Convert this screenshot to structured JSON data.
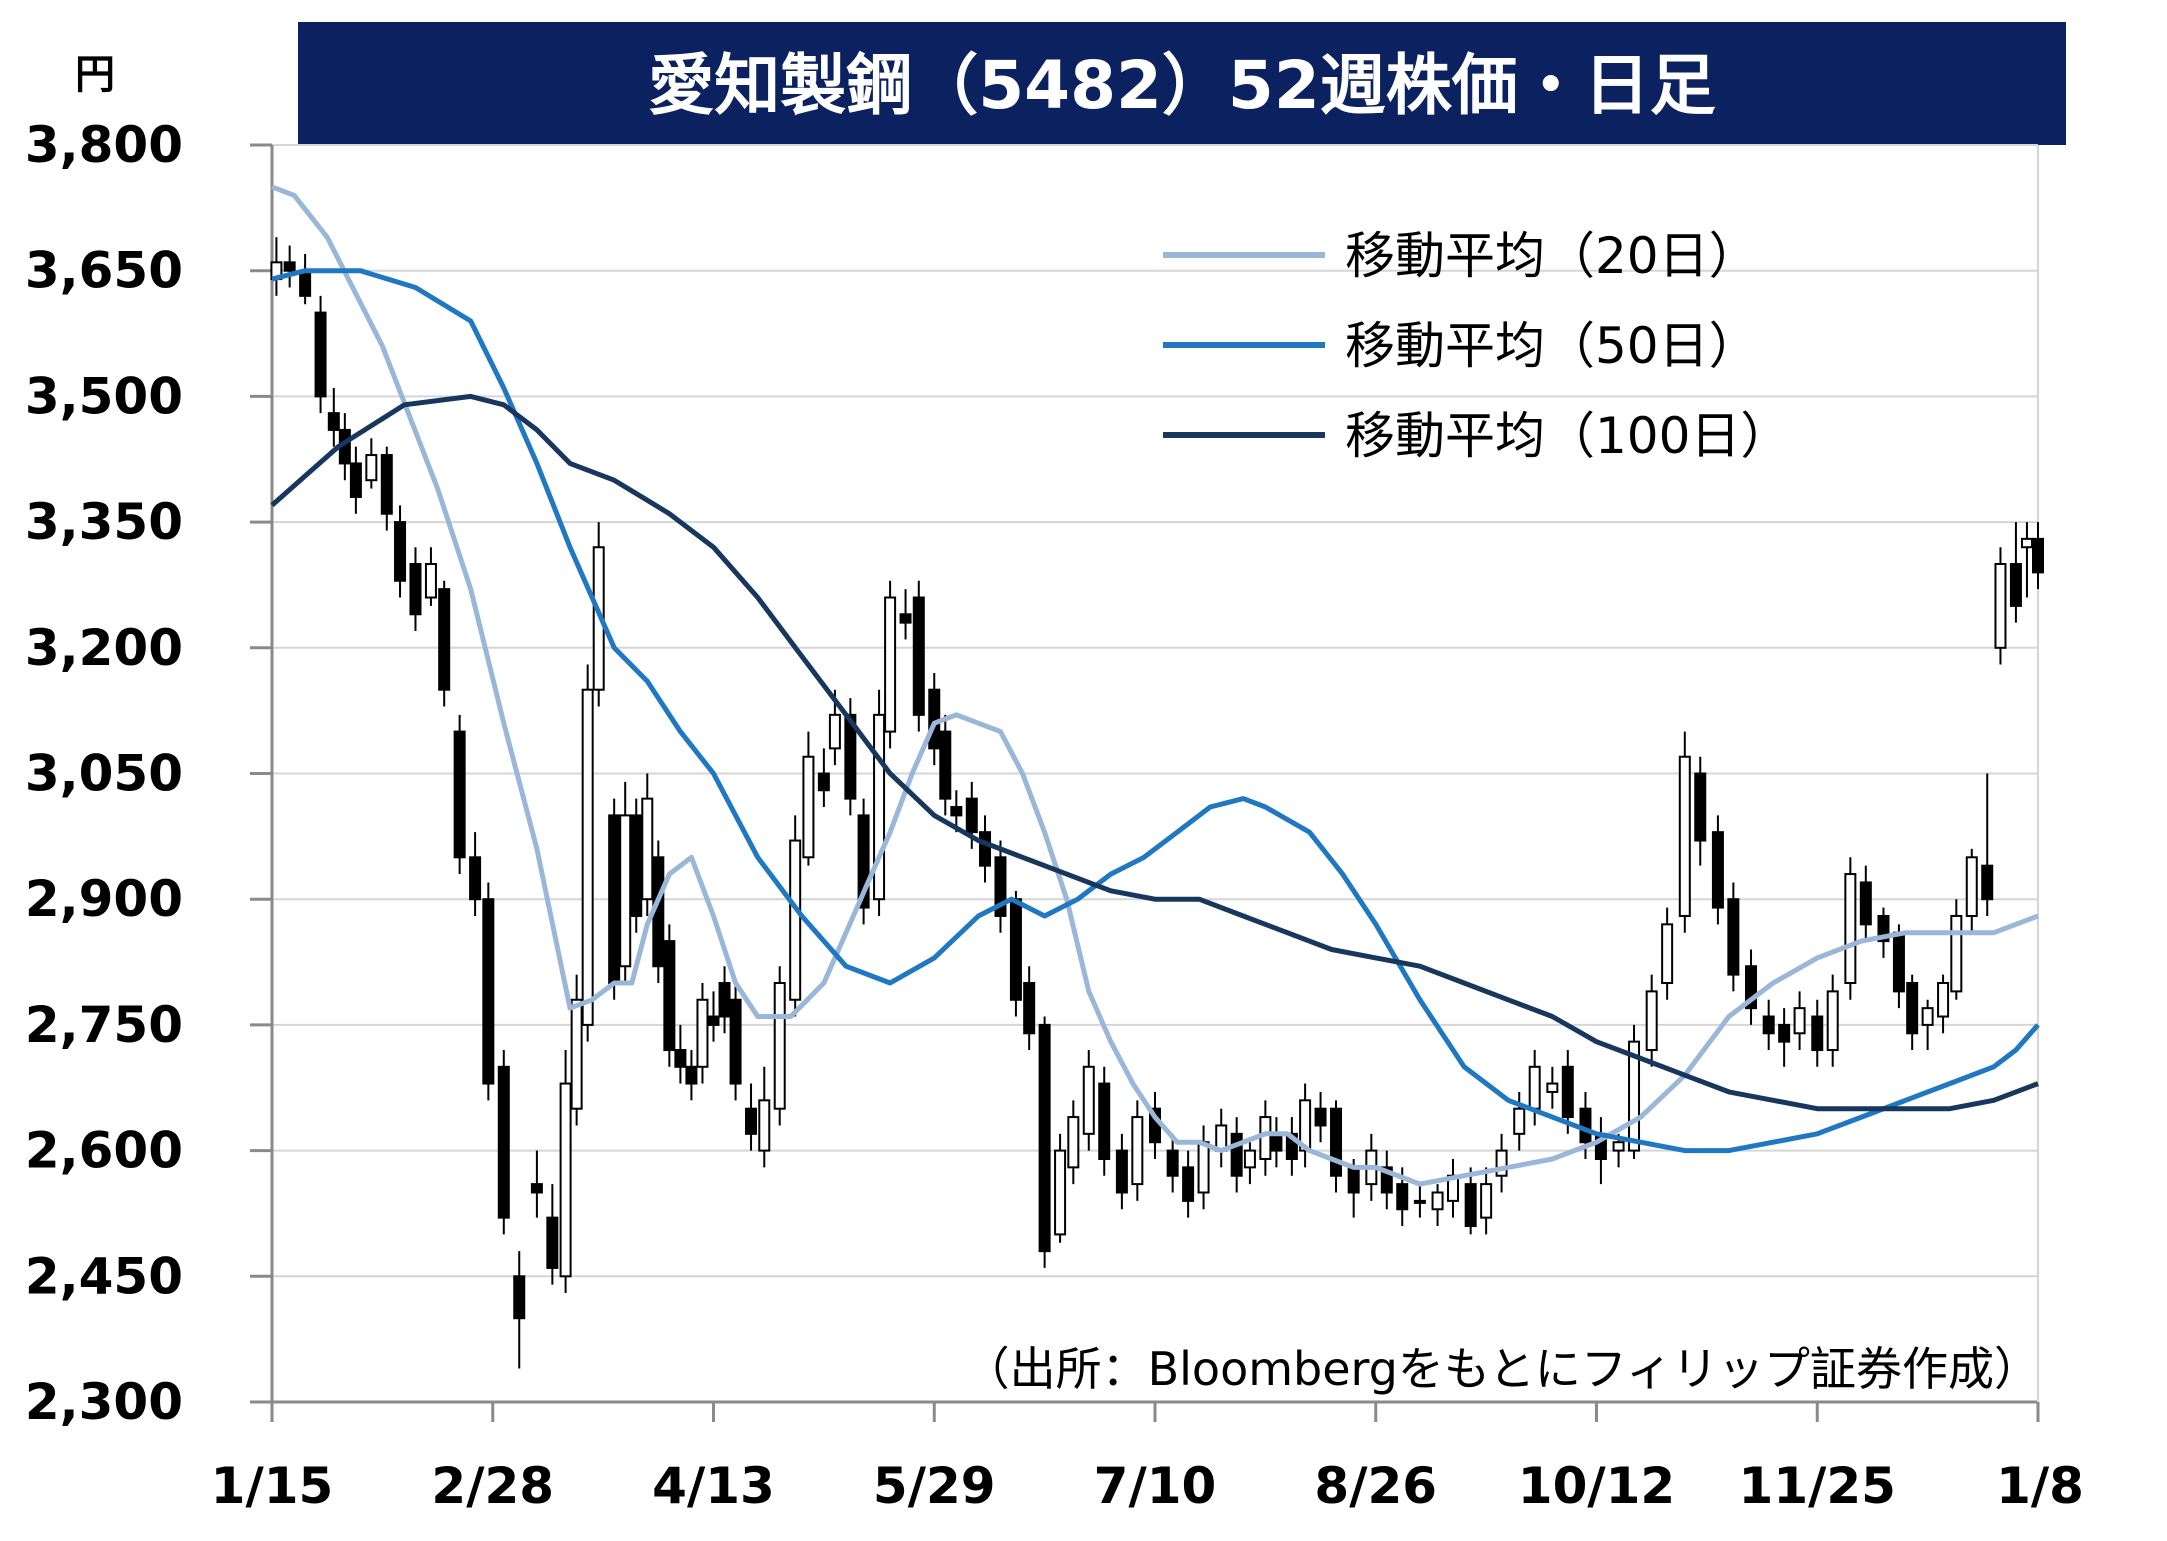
{
  "chart_data": {
    "type": "line",
    "title": "愛知製鋼（5482）52週株価・日足",
    "unit_label": "円",
    "source": "（出所：Bloombergをもとにフィリップ証券作成）",
    "ylim": [
      2300,
      3800
    ],
    "yticks": [
      "3,800",
      "3,650",
      "3,500",
      "3,350",
      "3,200",
      "3,050",
      "2,900",
      "2,750",
      "2,600",
      "2,450",
      "2,300"
    ],
    "ytick_values": [
      3800,
      3650,
      3500,
      3350,
      3200,
      3050,
      2900,
      2750,
      2600,
      2450,
      2300
    ],
    "xlim": [
      0,
      8
    ],
    "x_tick_labels": [
      "1/15",
      "2/28",
      "4/13",
      "5/29",
      "7/10",
      "8/26",
      "10/12",
      "11/25",
      "1/8"
    ],
    "grid": true,
    "legend_position": "top-right",
    "series": [
      {
        "name": "移動平均（20日）",
        "color": "#9ab6d8",
        "x": [
          0,
          0.1,
          0.25,
          0.5,
          0.75,
          0.9,
          1.05,
          1.2,
          1.35,
          1.45,
          1.55,
          1.63,
          1.7,
          1.8,
          1.9,
          2.0,
          2.1,
          2.2,
          2.35,
          2.5,
          2.6,
          2.7,
          2.8,
          2.9,
          3.0,
          3.1,
          3.2,
          3.3,
          3.4,
          3.5,
          3.6,
          3.7,
          3.8,
          3.9,
          4.0,
          4.1,
          4.2,
          4.3,
          4.4,
          4.5,
          4.6,
          4.7,
          4.8,
          4.9,
          5.0,
          5.2,
          5.4,
          5.6,
          5.8,
          6.0,
          6.2,
          6.4,
          6.6,
          6.8,
          7.0,
          7.2,
          7.4,
          7.6,
          7.8,
          8.0
        ],
        "values": [
          3750,
          3740,
          3690,
          3560,
          3390,
          3270,
          3110,
          2960,
          2770,
          2780,
          2800,
          2800,
          2870,
          2930,
          2950,
          2880,
          2800,
          2760,
          2760,
          2800,
          2860,
          2920,
          2980,
          3050,
          3110,
          3120,
          3110,
          3100,
          3050,
          2980,
          2900,
          2790,
          2730,
          2680,
          2640,
          2610,
          2610,
          2600,
          2610,
          2620,
          2620,
          2600,
          2590,
          2580,
          2580,
          2560,
          2570,
          2580,
          2590,
          2610,
          2640,
          2690,
          2760,
          2800,
          2830,
          2850,
          2860,
          2860,
          2860,
          2880
        ]
      },
      {
        "name": "移動平均（50日）",
        "color": "#1f78c1",
        "x": [
          0,
          0.15,
          0.4,
          0.65,
          0.9,
          1.05,
          1.2,
          1.35,
          1.55,
          1.7,
          1.85,
          2.0,
          2.2,
          2.4,
          2.6,
          2.8,
          3.0,
          3.2,
          3.35,
          3.5,
          3.65,
          3.8,
          3.95,
          4.1,
          4.25,
          4.4,
          4.5,
          4.7,
          4.85,
          5.0,
          5.2,
          5.4,
          5.6,
          5.8,
          6.0,
          6.2,
          6.4,
          6.6,
          6.8,
          7.0,
          7.2,
          7.4,
          7.6,
          7.8,
          7.9,
          8.0
        ],
        "values": [
          3640,
          3650,
          3650,
          3630,
          3590,
          3510,
          3420,
          3320,
          3200,
          3160,
          3100,
          3050,
          2950,
          2880,
          2820,
          2800,
          2830,
          2880,
          2900,
          2880,
          2900,
          2930,
          2950,
          2980,
          3010,
          3020,
          3010,
          2980,
          2930,
          2870,
          2780,
          2700,
          2660,
          2640,
          2620,
          2610,
          2600,
          2600,
          2610,
          2620,
          2640,
          2660,
          2680,
          2700,
          2720,
          2750
        ]
      },
      {
        "name": "移動平均（100日）",
        "color": "#17375e",
        "x": [
          0,
          0.3,
          0.6,
          0.9,
          1.05,
          1.2,
          1.35,
          1.55,
          1.8,
          2.0,
          2.2,
          2.4,
          2.6,
          2.8,
          3.0,
          3.2,
          3.4,
          3.6,
          3.8,
          4.0,
          4.2,
          4.4,
          4.6,
          4.8,
          5.0,
          5.2,
          5.4,
          5.6,
          5.8,
          6.0,
          6.2,
          6.4,
          6.6,
          6.8,
          7.0,
          7.2,
          7.4,
          7.6,
          7.8,
          8.0
        ],
        "values": [
          3370,
          3440,
          3490,
          3500,
          3490,
          3460,
          3420,
          3400,
          3360,
          3320,
          3260,
          3190,
          3120,
          3050,
          3000,
          2970,
          2950,
          2930,
          2910,
          2900,
          2900,
          2880,
          2860,
          2840,
          2830,
          2820,
          2800,
          2780,
          2760,
          2730,
          2710,
          2690,
          2670,
          2660,
          2650,
          2650,
          2650,
          2650,
          2660,
          2680
        ]
      }
    ],
    "candlesticks": {
      "color": "#000000",
      "x": [
        0.02,
        0.08,
        0.15,
        0.22,
        0.28,
        0.33,
        0.38,
        0.45,
        0.52,
        0.58,
        0.65,
        0.72,
        0.78,
        0.85,
        0.92,
        0.98,
        1.05,
        1.12,
        1.2,
        1.27,
        1.33,
        1.38,
        1.43,
        1.48,
        1.55,
        1.6,
        1.65,
        1.7,
        1.75,
        1.8,
        1.85,
        1.9,
        1.95,
        2.0,
        2.05,
        2.1,
        2.17,
        2.23,
        2.3,
        2.37,
        2.43,
        2.5,
        2.55,
        2.62,
        2.68,
        2.75,
        2.8,
        2.87,
        2.93,
        3.0,
        3.05,
        3.1,
        3.17,
        3.23,
        3.3,
        3.37,
        3.43,
        3.5,
        3.57,
        3.63,
        3.7,
        3.77,
        3.85,
        3.92,
        4.0,
        4.08,
        4.15,
        4.22,
        4.3,
        4.37,
        4.43,
        4.5,
        4.55,
        4.62,
        4.68,
        4.75,
        4.82,
        4.9,
        4.98,
        5.05,
        5.12,
        5.2,
        5.28,
        5.35,
        5.43,
        5.5,
        5.57,
        5.65,
        5.72,
        5.8,
        5.87,
        5.95,
        6.02,
        6.1,
        6.17,
        6.25,
        6.32,
        6.4,
        6.47,
        6.55,
        6.62,
        6.7,
        6.78,
        6.85,
        6.92,
        7.0,
        7.07,
        7.15,
        7.22,
        7.3,
        7.37,
        7.43,
        7.5,
        7.57,
        7.63,
        7.7,
        7.77,
        7.83,
        7.9,
        7.95,
        8.0
      ],
      "open": [
        3640,
        3660,
        3650,
        3600,
        3480,
        3460,
        3420,
        3400,
        3430,
        3350,
        3300,
        3260,
        3270,
        3100,
        2950,
        2900,
        2700,
        2450,
        2560,
        2520,
        2450,
        2650,
        2750,
        3150,
        3000,
        2820,
        3000,
        2900,
        2950,
        2850,
        2720,
        2700,
        2700,
        2760,
        2800,
        2780,
        2650,
        2600,
        2650,
        2780,
        2950,
        3050,
        3080,
        3120,
        3000,
        2900,
        3100,
        3240,
        3260,
        3150,
        3100,
        3010,
        3020,
        2980,
        2950,
        2900,
        2800,
        2750,
        2500,
        2580,
        2620,
        2680,
        2600,
        2560,
        2650,
        2600,
        2580,
        2550,
        2600,
        2620,
        2580,
        2590,
        2620,
        2620,
        2600,
        2650,
        2650,
        2580,
        2560,
        2580,
        2560,
        2540,
        2530,
        2540,
        2560,
        2520,
        2570,
        2620,
        2650,
        2670,
        2700,
        2650,
        2620,
        2600,
        2600,
        2720,
        2800,
        2880,
        3050,
        2980,
        2900,
        2820,
        2760,
        2750,
        2740,
        2760,
        2720,
        2800,
        2920,
        2880,
        2860,
        2800,
        2750,
        2760,
        2790,
        2880,
        2940,
        3200,
        3300,
        3320,
        3330
      ],
      "close": [
        3660,
        3650,
        3620,
        3500,
        3460,
        3420,
        3380,
        3430,
        3360,
        3280,
        3240,
        3300,
        3150,
        2950,
        2900,
        2680,
        2520,
        2400,
        2550,
        2460,
        2680,
        2780,
        3150,
        3320,
        2800,
        3000,
        2880,
        3020,
        2820,
        2720,
        2700,
        2680,
        2780,
        2750,
        2760,
        2680,
        2620,
        2660,
        2800,
        2970,
        3070,
        3030,
        3120,
        3020,
        2890,
        3120,
        3260,
        3230,
        3120,
        3080,
        3020,
        3000,
        2980,
        2940,
        2880,
        2780,
        2740,
        2480,
        2600,
        2640,
        2700,
        2590,
        2550,
        2640,
        2610,
        2570,
        2540,
        2610,
        2630,
        2570,
        2600,
        2640,
        2600,
        2590,
        2660,
        2630,
        2570,
        2550,
        2600,
        2550,
        2530,
        2540,
        2550,
        2570,
        2510,
        2560,
        2600,
        2650,
        2700,
        2680,
        2640,
        2610,
        2590,
        2610,
        2730,
        2790,
        2870,
        3070,
        2970,
        2890,
        2810,
        2770,
        2740,
        2730,
        2770,
        2720,
        2790,
        2930,
        2870,
        2850,
        2790,
        2740,
        2770,
        2800,
        2880,
        2950,
        2900,
        3300,
        3250,
        3330,
        3290
      ],
      "high": [
        3690,
        3680,
        3670,
        3620,
        3510,
        3480,
        3440,
        3450,
        3440,
        3370,
        3320,
        3320,
        3280,
        3120,
        2980,
        2920,
        2720,
        2480,
        2600,
        2560,
        2720,
        2810,
        3180,
        3350,
        3020,
        3040,
        3020,
        3050,
        2970,
        2870,
        2750,
        2720,
        2800,
        2790,
        2820,
        2800,
        2680,
        2700,
        2820,
        3000,
        3100,
        3080,
        3150,
        3140,
        3020,
        3150,
        3280,
        3270,
        3280,
        3170,
        3120,
        3030,
        3040,
        3000,
        2970,
        2910,
        2820,
        2760,
        2620,
        2660,
        2720,
        2700,
        2620,
        2660,
        2670,
        2620,
        2600,
        2630,
        2650,
        2640,
        2610,
        2660,
        2640,
        2640,
        2680,
        2670,
        2660,
        2590,
        2620,
        2600,
        2580,
        2560,
        2560,
        2590,
        2580,
        2580,
        2620,
        2670,
        2720,
        2700,
        2720,
        2670,
        2640,
        2620,
        2750,
        2810,
        2890,
        3100,
        3070,
        3000,
        2920,
        2840,
        2780,
        2770,
        2790,
        2780,
        2810,
        2950,
        2940,
        2890,
        2870,
        2810,
        2780,
        2810,
        2900,
        2960,
        3050,
        3320,
        3350,
        3350,
        3350
      ],
      "low": [
        3620,
        3630,
        3610,
        3480,
        3440,
        3400,
        3360,
        3390,
        3340,
        3260,
        3220,
        3250,
        3130,
        2930,
        2880,
        2660,
        2500,
        2340,
        2520,
        2440,
        2430,
        2630,
        2730,
        3130,
        2780,
        2800,
        2860,
        2880,
        2800,
        2700,
        2680,
        2660,
        2680,
        2730,
        2740,
        2660,
        2600,
        2580,
        2630,
        2760,
        2940,
        3010,
        3060,
        3000,
        2870,
        2880,
        3080,
        3210,
        3100,
        3060,
        3000,
        2980,
        2960,
        2920,
        2860,
        2760,
        2720,
        2460,
        2490,
        2560,
        2600,
        2570,
        2530,
        2540,
        2590,
        2550,
        2520,
        2530,
        2580,
        2550,
        2560,
        2570,
        2580,
        2570,
        2580,
        2610,
        2550,
        2520,
        2540,
        2530,
        2510,
        2520,
        2510,
        2520,
        2500,
        2500,
        2550,
        2600,
        2630,
        2650,
        2620,
        2590,
        2560,
        2580,
        2590,
        2700,
        2780,
        2860,
        2940,
        2870,
        2790,
        2750,
        2720,
        2700,
        2720,
        2700,
        2700,
        2780,
        2850,
        2830,
        2770,
        2720,
        2720,
        2740,
        2780,
        2860,
        2880,
        3180,
        3230,
        3260,
        3270
      ]
    }
  }
}
